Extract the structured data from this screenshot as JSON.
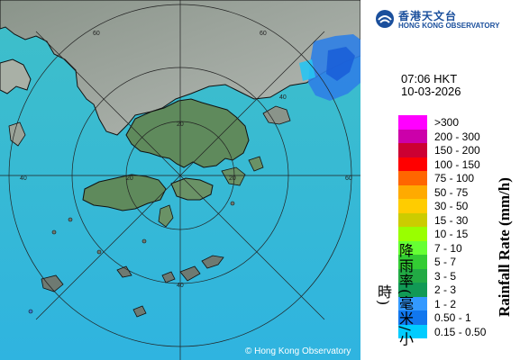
{
  "map": {
    "copyright": "© Hong Kong Observatory",
    "range_labels": [
      "60",
      "60",
      "60",
      "40",
      "40",
      "40",
      "20",
      "20",
      "20"
    ]
  },
  "header": {
    "org_name_cn": "香港天文台",
    "org_name_en": "HONG KONG OBSERVATORY",
    "logo_icon": "hko-logo-icon"
  },
  "timestamp": {
    "time": "07:06 HKT",
    "date": "10-03-2026"
  },
  "legend": {
    "title_cn": "降雨率(毫米/小時)",
    "title_en": "Rainfall Rate (mm/h)",
    "items": [
      {
        "label": ">300",
        "color": "#ff00ff"
      },
      {
        "label": "200 - 300",
        "color": "#cc00aa"
      },
      {
        "label": "150 - 200",
        "color": "#cc0033"
      },
      {
        "label": "100 - 150",
        "color": "#ff0000"
      },
      {
        "label": "75 - 100",
        "color": "#ff6600"
      },
      {
        "label": "50 - 75",
        "color": "#ffaa00"
      },
      {
        "label": "30 - 50",
        "color": "#ffcc00"
      },
      {
        "label": "15 - 30",
        "color": "#cccc00"
      },
      {
        "label": "10 - 15",
        "color": "#99ff00"
      },
      {
        "label": "7 - 10",
        "color": "#66ff33"
      },
      {
        "label": "5 - 7",
        "color": "#33cc33"
      },
      {
        "label": "3 - 5",
        "color": "#22aa44"
      },
      {
        "label": "2 - 3",
        "color": "#119955"
      },
      {
        "label": "1 - 2",
        "color": "#3399ff"
      },
      {
        "label": "0.50 - 1",
        "color": "#1177ee"
      },
      {
        "label": "0.15 - 0.50",
        "color": "#00ccff"
      }
    ]
  }
}
